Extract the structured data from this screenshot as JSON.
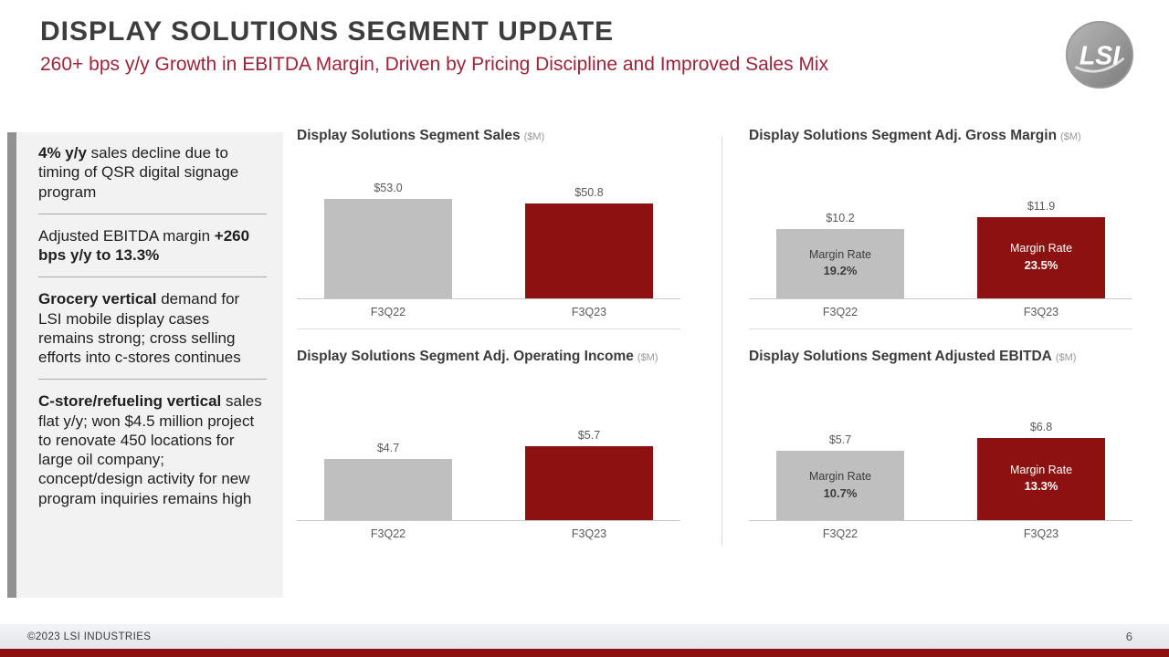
{
  "slide": {
    "title": "DISPLAY SOLUTIONS SEGMENT UPDATE",
    "subtitle": "260+ bps y/y Growth in EBITDA Margin, Driven by Pricing Discipline and Improved Sales Mix",
    "logo_text": "LSI",
    "footer": {
      "copyright": "©2023 LSI INDUSTRIES",
      "page_number": "6"
    }
  },
  "colors": {
    "accent_red": "#9e2339",
    "bar_prior": "#bfbfbf",
    "bar_current": "#8c1110"
  },
  "sidebar": {
    "items": [
      {
        "bold": "4% y/y",
        "normal": " sales decline due to timing of QSR digital signage program"
      },
      {
        "normal": "Adjusted EBITDA margin ",
        "bold": "+260 bps y/y to 13.3%"
      },
      {
        "bold": "Grocery vertical",
        "normal": " demand for LSI mobile display cases remains strong; cross selling efforts into c-stores continues"
      },
      {
        "bold": "C-store/refueling vertical",
        "normal": " sales flat y/y; won $4.5 million project to renovate 450 locations for large oil company; concept/design activity for new program inquiries remains high"
      }
    ]
  },
  "chart_data": [
    {
      "type": "bar",
      "title": "Display Solutions Segment Sales",
      "unit_label": "($M)",
      "categories": [
        "F3Q22",
        "F3Q23"
      ],
      "values": [
        53.0,
        50.8
      ],
      "value_labels": [
        "$53.0",
        "$50.8"
      ],
      "ylim": [
        0,
        60
      ],
      "legend": "none",
      "grid": false
    },
    {
      "type": "bar",
      "title": "Display Solutions Segment Adj. Gross Margin",
      "unit_label": "($M)",
      "categories": [
        "F3Q22",
        "F3Q23"
      ],
      "values": [
        10.2,
        11.9
      ],
      "value_labels": [
        "$10.2",
        "$11.9"
      ],
      "bar_annotations": [
        {
          "label": "Margin Rate",
          "value": "19.2%"
        },
        {
          "label": "Margin Rate",
          "value": "23.5%"
        }
      ],
      "ylim": [
        0,
        14
      ],
      "legend": "none",
      "grid": false
    },
    {
      "type": "bar",
      "title": "Display Solutions Segment Adj. Operating Income",
      "unit_label": "($M)",
      "categories": [
        "F3Q22",
        "F3Q23"
      ],
      "values": [
        4.7,
        5.7
      ],
      "value_labels": [
        "$4.7",
        "$5.7"
      ],
      "ylim": [
        0,
        7
      ],
      "legend": "none",
      "grid": false
    },
    {
      "type": "bar",
      "title": "Display Solutions Segment Adjusted EBITDA",
      "unit_label": "($M)",
      "categories": [
        "F3Q22",
        "F3Q23"
      ],
      "values": [
        5.7,
        6.8
      ],
      "value_labels": [
        "$5.7",
        "$6.8"
      ],
      "bar_annotations": [
        {
          "label": "Margin Rate",
          "value": "10.7%"
        },
        {
          "label": "Margin Rate",
          "value": "13.3%"
        }
      ],
      "ylim": [
        0,
        8
      ],
      "legend": "none",
      "grid": false
    }
  ]
}
